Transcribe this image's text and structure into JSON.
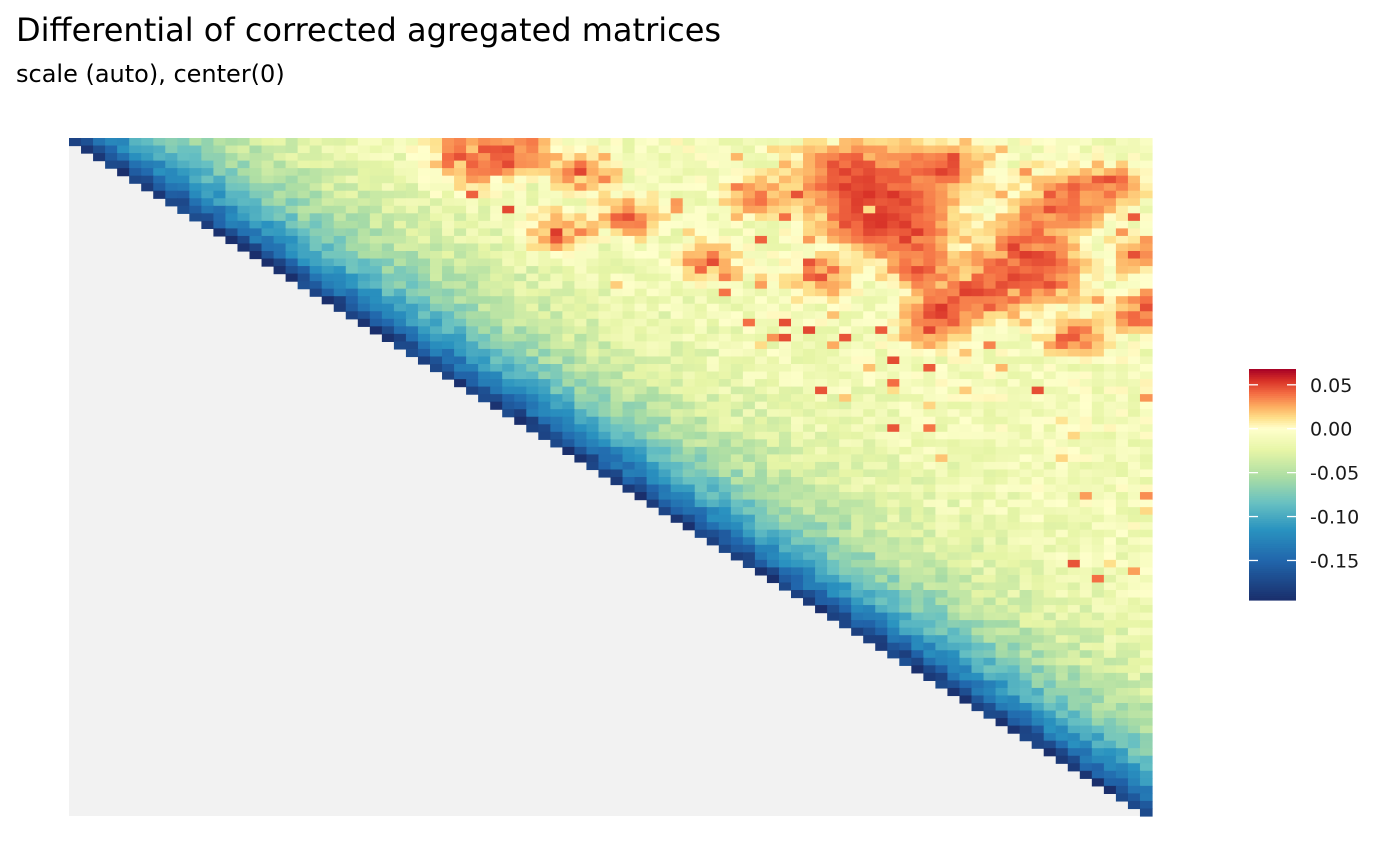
{
  "chart_data": {
    "type": "heatmap",
    "title": "Differential of corrected agregated matrices",
    "subtitle": "scale (auto), center(0)",
    "xlabel": "",
    "ylabel": "",
    "shape": "upper-triangular matrix",
    "n_bins": 90,
    "colorbar": {
      "min": -0.195,
      "max": 0.068,
      "center": 0,
      "ticks": [
        0.05,
        0.0,
        -0.05,
        -0.1,
        -0.15
      ],
      "tick_labels": [
        "0.05",
        "0.00",
        "-0.05",
        "-0.10",
        "-0.15"
      ],
      "palette": [
        "#1a2f6c",
        "#2166ac",
        "#2a93c0",
        "#67c0c2",
        "#abdda4",
        "#e6f5a6",
        "#ffffcc",
        "#fee08b",
        "#fdae61",
        "#f46d43",
        "#d73027",
        "#a50026"
      ],
      "palette_stops": [
        -0.195,
        -0.15,
        -0.115,
        -0.085,
        -0.055,
        -0.025,
        0.0,
        0.012,
        0.025,
        0.04,
        0.055,
        0.068
      ]
    },
    "value_profile": {
      "description_of_trend": "near-diagonal cells strongly negative, values rise toward zero with distance from diagonal",
      "diagonal_value": -0.18,
      "far_value": -0.01,
      "hotspot_value": 0.055
    },
    "grid": false,
    "legend_position": "right",
    "lower_triangle_fill": "#f2f2f2"
  }
}
